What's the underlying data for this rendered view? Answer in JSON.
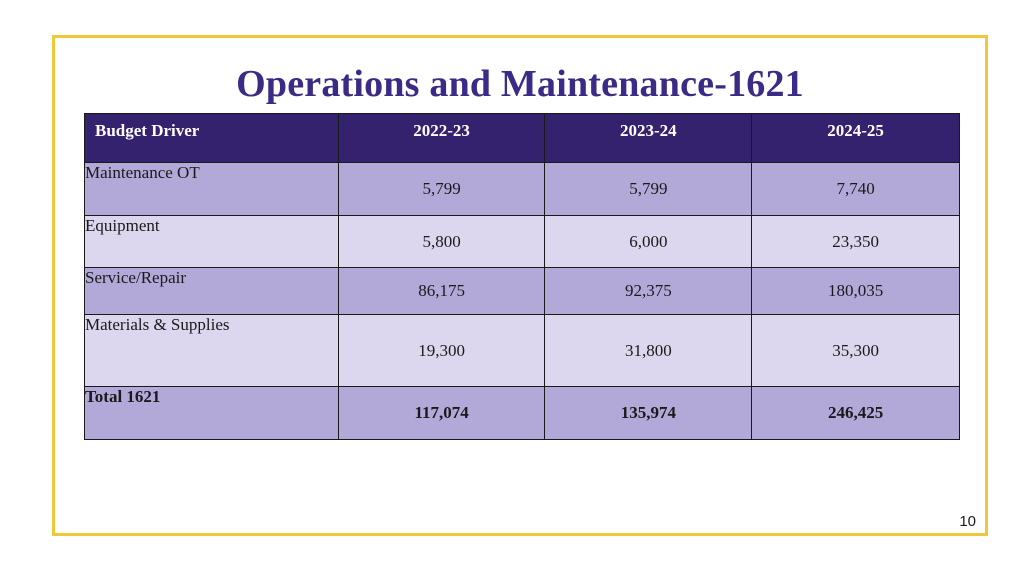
{
  "slide": {
    "title": "Operations and Maintenance-1621",
    "page_number": "10"
  },
  "table": {
    "headers": [
      "Budget Driver",
      "2022-23",
      "2023-24",
      "2024-25"
    ],
    "rows": [
      {
        "label": "Maintenance OT",
        "values": [
          "5,799",
          "5,799",
          "7,740"
        ]
      },
      {
        "label": "Equipment",
        "values": [
          "5,800",
          "6,000",
          "23,350"
        ]
      },
      {
        "label": "Service/Repair",
        "values": [
          "86,175",
          "92,375",
          "180,035"
        ]
      },
      {
        "label": "Materials & Supplies",
        "values": [
          "19,300",
          "31,800",
          "35,300"
        ]
      },
      {
        "label": "Total 1621",
        "values": [
          "117,074",
          "135,974",
          "246,425"
        ]
      }
    ]
  },
  "colors": {
    "title": "#3b2a86",
    "header_bg": "#35226e",
    "row_dark": "#b2a9d8",
    "row_light": "#dcd7ee",
    "frame_border": "#f0c83a"
  }
}
